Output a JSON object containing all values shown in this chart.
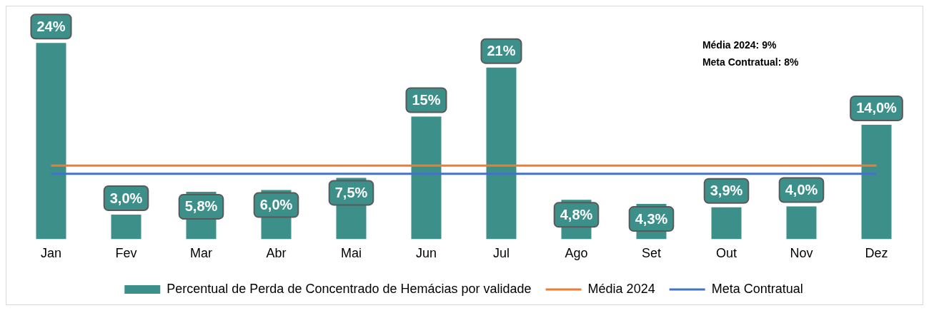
{
  "chart_data": {
    "type": "bar",
    "categories": [
      "Jan",
      "Fev",
      "Mar",
      "Abr",
      "Mai",
      "Jun",
      "Jul",
      "Ago",
      "Set",
      "Out",
      "Nov",
      "Dez"
    ],
    "series": [
      {
        "name": "Percentual de Perda de Concentrado de Hemácias por validade",
        "color": "#3d8f8a",
        "values": [
          24,
          3.0,
          5.8,
          6.0,
          7.5,
          15,
          21,
          4.8,
          4.3,
          3.9,
          4.0,
          14.0
        ],
        "value_labels": [
          "24%",
          "3,0%",
          "5,8%",
          "6,0%",
          "7,5%",
          "15%",
          "21%",
          "4,8%",
          "4,3%",
          "3,9%",
          "4,0%",
          "14,0%"
        ]
      },
      {
        "name": "Média 2024",
        "type": "line",
        "color": "#ed7d31",
        "values": [
          9,
          9,
          9,
          9,
          9,
          9,
          9,
          9,
          9,
          9,
          9,
          9
        ]
      },
      {
        "name": "Meta Contratual",
        "type": "line",
        "color": "#4472c4",
        "values": [
          8,
          8,
          8,
          8,
          8,
          8,
          8,
          8,
          8,
          8,
          8,
          8
        ]
      }
    ],
    "annotations": [
      "Média 2024: 9%",
      "Meta Contratual: 8%"
    ],
    "legend": "bottom",
    "grid": false,
    "marker": "none"
  }
}
